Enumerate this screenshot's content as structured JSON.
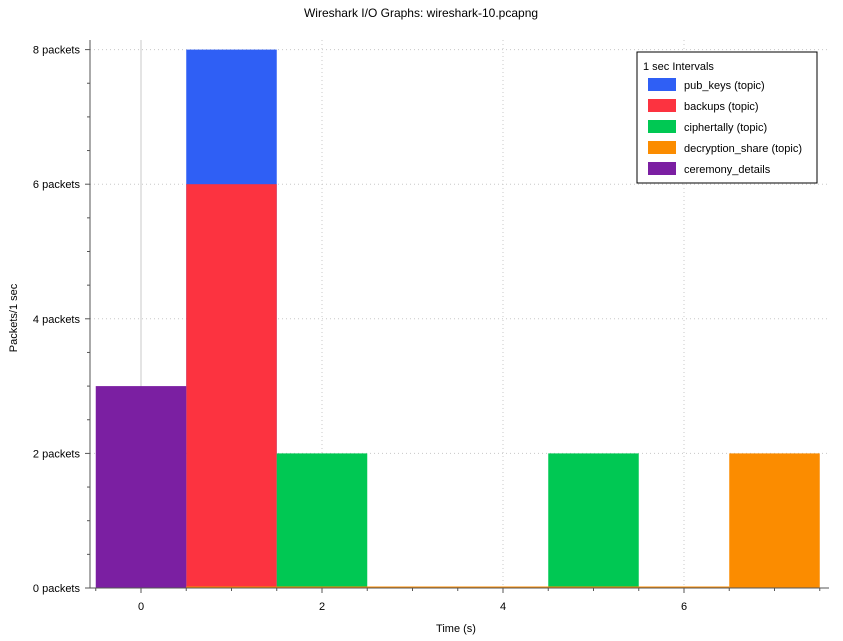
{
  "window": {
    "title": "Wireshark I/O Graphs: wireshark-10.pcapng"
  },
  "chart_data": {
    "type": "bar",
    "title": "Wireshark I/O Graphs: wireshark-10.pcapng",
    "xlabel": "Time (s)",
    "ylabel": "Packets/1 sec",
    "xlim": [
      -0.6,
      7.6
    ],
    "ylim": [
      0,
      8
    ],
    "xticks": [
      0,
      2,
      4,
      6
    ],
    "xtick_labels": [
      "0",
      "2",
      "4",
      "6"
    ],
    "yticks": [
      0,
      2,
      4,
      6,
      8
    ],
    "ytick_labels": [
      "0 packets",
      "2 packets",
      "4 packets",
      "6 packets",
      "8 packets"
    ],
    "grid": true,
    "legend": {
      "title": "1 sec Intervals",
      "placement": "top-right"
    },
    "categories": [
      0,
      1,
      2,
      3,
      4,
      5,
      6,
      7
    ],
    "series": [
      {
        "name": "pub_keys (topic)",
        "color": "#2f5ff5",
        "values": [
          0,
          8,
          0,
          0,
          0,
          0,
          0,
          0
        ]
      },
      {
        "name": "backups (topic)",
        "color": "#fc3340",
        "values": [
          0,
          6,
          0,
          0,
          0,
          0,
          0,
          0
        ]
      },
      {
        "name": "ciphertally (topic)",
        "color": "#00c853",
        "values": [
          0,
          0,
          2,
          0,
          0,
          2,
          0,
          0
        ]
      },
      {
        "name": "decryption_share (topic)",
        "color": "#fb8c00",
        "values": [
          0,
          0,
          0,
          0,
          0,
          0,
          0,
          2
        ]
      },
      {
        "name": "ceremony_details",
        "color": "#7b1fa2",
        "values": [
          3,
          0,
          0,
          0,
          0,
          0,
          0,
          0
        ]
      }
    ]
  }
}
